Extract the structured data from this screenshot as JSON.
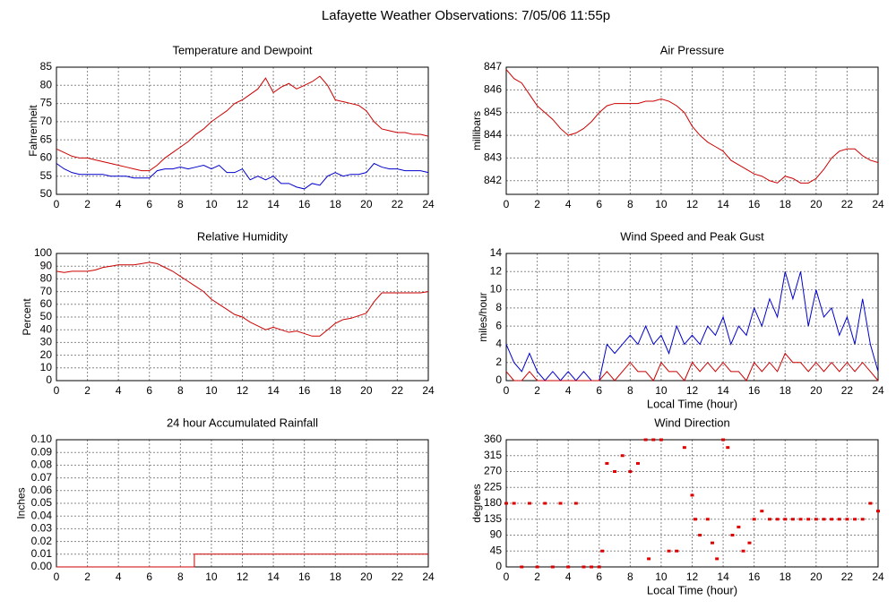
{
  "title": "Lafayette Weather Observations: 7/05/06 11:55p",
  "chart_data": [
    {
      "type": "line",
      "title": "Temperature and Dewpoint",
      "ylabel": "Fahrenheit",
      "x": [
        0,
        0.5,
        1,
        1.5,
        2,
        2.5,
        3,
        3.5,
        4,
        4.5,
        5,
        5.5,
        6,
        6.5,
        7,
        7.5,
        8,
        8.5,
        9,
        9.5,
        10,
        10.5,
        11,
        11.5,
        12,
        12.5,
        13,
        13.5,
        14,
        14.5,
        15,
        15.5,
        16,
        16.5,
        17,
        17.5,
        18,
        18.5,
        19,
        19.5,
        20,
        20.5,
        21,
        21.5,
        22,
        22.5,
        23,
        23.5,
        24
      ],
      "series": [
        {
          "color": "#cc0000",
          "values": [
            62.5,
            61.5,
            60.5,
            60,
            60,
            59.5,
            59,
            58.5,
            58,
            57.5,
            57,
            56.5,
            56.5,
            58,
            60,
            61.5,
            63,
            64.5,
            66.5,
            68,
            70,
            71.5,
            73,
            75,
            76,
            77.5,
            79,
            82,
            78,
            79.5,
            80.5,
            79,
            80,
            81,
            82.5,
            80,
            76,
            75.5,
            75,
            74.5,
            73,
            70,
            68,
            67.5,
            67,
            67,
            66.5,
            66.5,
            66
          ]
        },
        {
          "color": "#0000cc",
          "values": [
            58.5,
            57,
            56,
            55.5,
            55.5,
            55.5,
            55.5,
            55,
            55,
            55,
            54.5,
            54.5,
            54.5,
            56.5,
            57,
            57,
            57.5,
            57,
            57.5,
            58,
            57,
            58,
            56,
            56,
            57,
            54,
            55,
            54,
            55,
            53,
            53,
            52,
            51.5,
            53,
            52.5,
            55,
            56,
            55,
            55.5,
            55.5,
            56,
            58.5,
            57.5,
            57,
            57,
            56.5,
            56.5,
            56.5,
            56
          ]
        }
      ],
      "xlim": [
        0,
        24
      ],
      "xticks": [
        0,
        2,
        4,
        6,
        8,
        10,
        12,
        14,
        16,
        18,
        20,
        22,
        24
      ],
      "ylim": [
        50,
        85
      ],
      "yticks": [
        50,
        55,
        60,
        65,
        70,
        75,
        80,
        85
      ],
      "grid": true
    },
    {
      "type": "line",
      "title": "Air Pressure",
      "ylabel": "millibars",
      "x": [
        0,
        0.5,
        1,
        1.5,
        2,
        2.5,
        3,
        3.5,
        4,
        4.5,
        5,
        5.5,
        6,
        6.5,
        7,
        7.5,
        8,
        8.5,
        9,
        9.5,
        10,
        10.5,
        11,
        11.5,
        12,
        12.5,
        13,
        13.5,
        14,
        14.5,
        15,
        15.5,
        16,
        16.5,
        17,
        17.5,
        18,
        18.5,
        19,
        19.5,
        20,
        20.5,
        21,
        21.5,
        22,
        22.5,
        23,
        23.5,
        24
      ],
      "series": [
        {
          "color": "#cc0000",
          "values": [
            846.9,
            846.5,
            846.3,
            845.8,
            845.3,
            845,
            844.7,
            844.3,
            844,
            844.1,
            844.3,
            844.6,
            845,
            845.3,
            845.4,
            845.4,
            845.4,
            845.4,
            845.5,
            845.5,
            845.6,
            845.5,
            845.3,
            845,
            844.4,
            844,
            843.7,
            843.5,
            843.3,
            842.9,
            842.7,
            842.5,
            842.3,
            842.2,
            842,
            841.9,
            842.2,
            842.1,
            841.9,
            841.9,
            842.1,
            842.5,
            843,
            843.3,
            843.4,
            843.4,
            843.1,
            842.9,
            842.8
          ]
        }
      ],
      "xlim": [
        0,
        24
      ],
      "xticks": [
        0,
        2,
        4,
        6,
        8,
        10,
        12,
        14,
        16,
        18,
        20,
        22,
        24
      ],
      "ylim": [
        841.4,
        847
      ],
      "yticks": [
        842,
        843,
        844,
        845,
        846,
        847
      ],
      "grid": true
    },
    {
      "type": "line",
      "title": "Relative Humidity",
      "ylabel": "Percent",
      "x": [
        0,
        0.5,
        1,
        1.5,
        2,
        2.5,
        3,
        3.5,
        4,
        4.5,
        5,
        5.5,
        6,
        6.5,
        7,
        7.5,
        8,
        8.5,
        9,
        9.5,
        10,
        10.5,
        11,
        11.5,
        12,
        12.5,
        13,
        13.5,
        14,
        14.5,
        15,
        15.5,
        16,
        16.5,
        17,
        17.5,
        18,
        18.5,
        19,
        19.5,
        20,
        20.5,
        21,
        21.5,
        22,
        22.5,
        23,
        23.5,
        24
      ],
      "series": [
        {
          "color": "#cc0000",
          "values": [
            86,
            85,
            86,
            86,
            86,
            87,
            89,
            90,
            91,
            91,
            91,
            92,
            93,
            92,
            89,
            86,
            82,
            78,
            74,
            70,
            64,
            60,
            56,
            52,
            50,
            46,
            43,
            40,
            42,
            40,
            38,
            39,
            37,
            35,
            35,
            40,
            45,
            48,
            49,
            51,
            53,
            62,
            69,
            69,
            69,
            69,
            69,
            69,
            70
          ]
        }
      ],
      "xlim": [
        0,
        24
      ],
      "xticks": [
        0,
        2,
        4,
        6,
        8,
        10,
        12,
        14,
        16,
        18,
        20,
        22,
        24
      ],
      "ylim": [
        0,
        100
      ],
      "yticks": [
        0,
        10,
        20,
        30,
        40,
        50,
        60,
        70,
        80,
        90,
        100
      ],
      "grid": true
    },
    {
      "type": "line",
      "title": "Wind Speed and Peak Gust",
      "xlabel": "Local Time (hour)",
      "ylabel": "miles/hour",
      "x": [
        0,
        0.5,
        1,
        1.5,
        2,
        2.5,
        3,
        3.5,
        4,
        4.5,
        5,
        5.5,
        6,
        6.5,
        7,
        7.5,
        8,
        8.5,
        9,
        9.5,
        10,
        10.5,
        11,
        11.5,
        12,
        12.5,
        13,
        13.5,
        14,
        14.5,
        15,
        15.5,
        16,
        16.5,
        17,
        17.5,
        18,
        18.5,
        19,
        19.5,
        20,
        20.5,
        21,
        21.5,
        22,
        22.5,
        23,
        23.5,
        24
      ],
      "series": [
        {
          "color": "#0000cc",
          "values": [
            4,
            2,
            1,
            3,
            1,
            0,
            1,
            0,
            1,
            0,
            1,
            0,
            0,
            4,
            3,
            4,
            5,
            4,
            6,
            4,
            5,
            3,
            6,
            4,
            5,
            4,
            6,
            5,
            7,
            4,
            6,
            5,
            8,
            6,
            9,
            7,
            12,
            9,
            12,
            6,
            10,
            7,
            8,
            5,
            7,
            4,
            9,
            4,
            1
          ]
        },
        {
          "color": "#cc0000",
          "values": [
            1,
            0,
            0,
            1,
            0,
            0,
            0,
            0,
            0,
            0,
            0,
            0,
            0,
            1,
            0,
            1,
            2,
            1,
            1,
            0,
            2,
            1,
            1,
            0,
            2,
            1,
            2,
            1,
            2,
            1,
            1,
            0,
            2,
            1,
            2,
            1,
            3,
            2,
            2,
            1,
            2,
            1,
            2,
            1,
            2,
            1,
            2,
            1,
            0
          ]
        }
      ],
      "xlim": [
        0,
        24
      ],
      "xticks": [
        0,
        2,
        4,
        6,
        8,
        10,
        12,
        14,
        16,
        18,
        20,
        22,
        24
      ],
      "ylim": [
        0,
        14
      ],
      "yticks": [
        0,
        2,
        4,
        6,
        8,
        10,
        12,
        14
      ],
      "grid": true
    },
    {
      "type": "line",
      "title": "24 hour Accumulated Rainfall",
      "ylabel": "Inches",
      "x": [
        0,
        8.9,
        8.9,
        24
      ],
      "series": [
        {
          "color": "#cc0000",
          "values": [
            0,
            0,
            0.01,
            0.01
          ]
        }
      ],
      "xlim": [
        0,
        24
      ],
      "xticks": [
        0,
        2,
        4,
        6,
        8,
        10,
        12,
        14,
        16,
        18,
        20,
        22,
        24
      ],
      "ylim": [
        0,
        0.1
      ],
      "yticks": [
        {
          "value": 0,
          "label": "0.00"
        },
        {
          "value": 0.01,
          "label": "0.01"
        },
        {
          "value": 0.02,
          "label": "0.02"
        },
        {
          "value": 0.03,
          "label": "0.03"
        },
        {
          "value": 0.04,
          "label": "0.04"
        },
        {
          "value": 0.05,
          "label": "0.05"
        },
        {
          "value": 0.06,
          "label": "0.06"
        },
        {
          "value": 0.07,
          "label": "0.07"
        },
        {
          "value": 0.08,
          "label": "0.08"
        },
        {
          "value": 0.09,
          "label": "0.09"
        },
        {
          "value": 0.1,
          "label": "0.10"
        }
      ],
      "grid": true
    },
    {
      "type": "scatter",
      "title": "Wind Direction",
      "xlabel": "Local Time (hour)",
      "ylabel": "degrees",
      "x": [
        0,
        0.5,
        1,
        1.5,
        2,
        2.5,
        3,
        3.5,
        4,
        4.5,
        5,
        5.5,
        6,
        6.2,
        6.5,
        7,
        7.5,
        8,
        8.5,
        9,
        9.2,
        9.5,
        10,
        10.5,
        11,
        11.5,
        12,
        12.2,
        12.5,
        13,
        13.3,
        13.6,
        14,
        14.3,
        14.6,
        15,
        15.3,
        15.7,
        16,
        16.5,
        17,
        17.5,
        18,
        18.5,
        19,
        19.5,
        20,
        20.5,
        21,
        21.5,
        22,
        22.5,
        23,
        23.5,
        24
      ],
      "series": [
        {
          "color": "#dd0000",
          "values": [
            180,
            180,
            0,
            180,
            0,
            180,
            0,
            180,
            0,
            180,
            0,
            0,
            0,
            45,
            293,
            270,
            315,
            270,
            293,
            360,
            23,
            360,
            360,
            45,
            45,
            338,
            203,
            135,
            90,
            135,
            68,
            23,
            360,
            338,
            90,
            113,
            45,
            68,
            135,
            158,
            135,
            135,
            135,
            135,
            135,
            135,
            135,
            135,
            135,
            135,
            135,
            135,
            135,
            180,
            158
          ]
        }
      ],
      "xlim": [
        0,
        24
      ],
      "xticks": [
        0,
        2,
        4,
        6,
        8,
        10,
        12,
        14,
        16,
        18,
        20,
        22,
        24
      ],
      "ylim": [
        0,
        360
      ],
      "yticks": [
        0,
        45,
        90,
        135,
        180,
        225,
        270,
        315,
        360
      ],
      "grid": true
    }
  ]
}
